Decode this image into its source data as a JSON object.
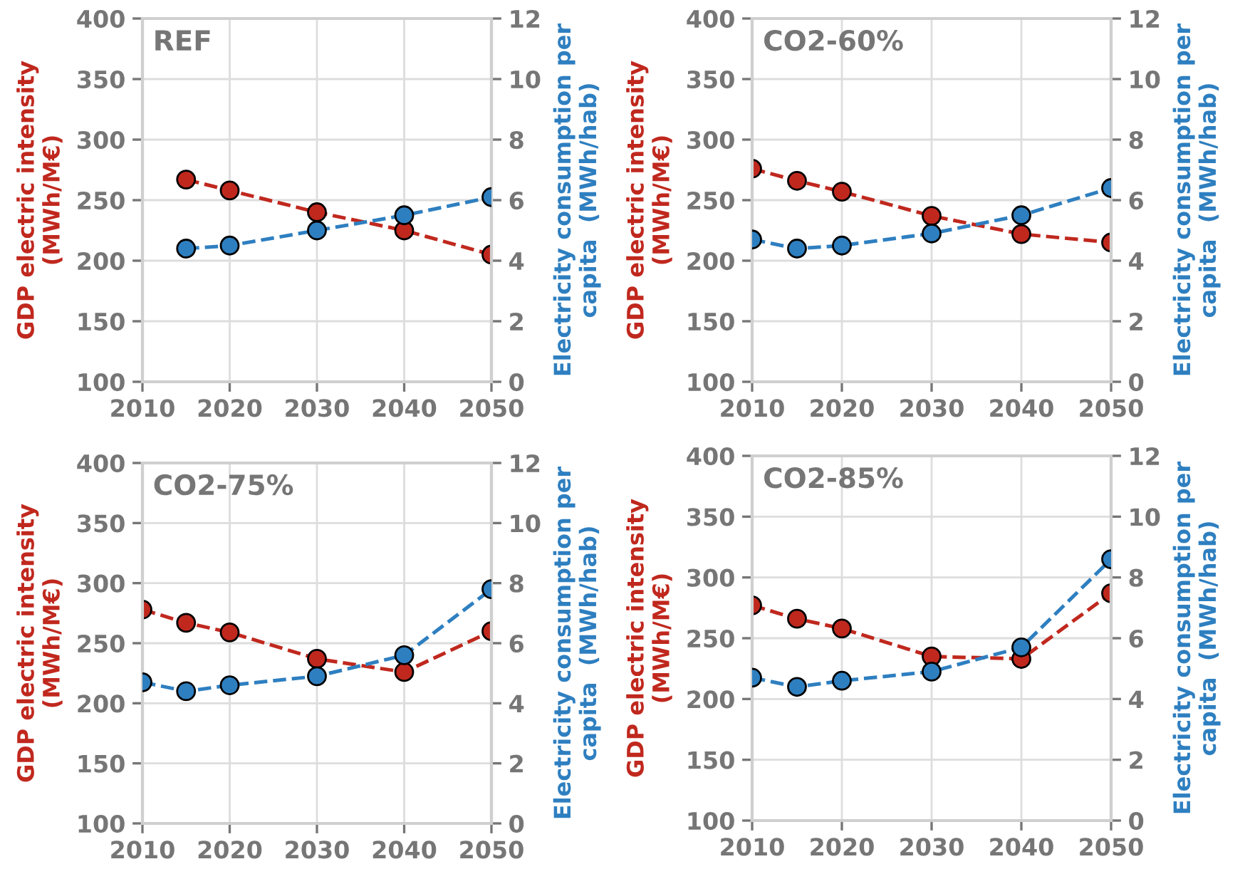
{
  "chart_data": [
    {
      "type": "line",
      "title": "REF",
      "x": [
        2015,
        2020,
        2030,
        2040,
        2050
      ],
      "xlim": [
        2010,
        2050
      ],
      "xticks": [
        2010,
        2020,
        2030,
        2040,
        2050
      ],
      "ylim": [
        100,
        400
      ],
      "yticks": [
        100,
        150,
        200,
        250,
        300,
        350,
        400
      ],
      "y2lim": [
        0,
        12
      ],
      "y2ticks": [
        0,
        2,
        4,
        6,
        8,
        10,
        12
      ],
      "ylabel": "GDP electric intensity\n(MWh/M€)",
      "y2label": "Electricity consumption per\ncapita  (MWh/hab)",
      "grid": true,
      "marker": "circle",
      "line_style": "dashed",
      "series": [
        {
          "color": "#c0281e",
          "values": [
            267,
            258,
            240,
            225,
            205
          ]
        },
        {
          "color": "#2e7fc0",
          "axis": "y2",
          "values": [
            4.4,
            4.5,
            5.0,
            5.5,
            6.1
          ]
        }
      ]
    },
    {
      "type": "line",
      "title": "CO2-60%",
      "x": [
        2010,
        2015,
        2020,
        2030,
        2040,
        2050
      ],
      "xlim": [
        2010,
        2050
      ],
      "xticks": [
        2010,
        2020,
        2030,
        2040,
        2050
      ],
      "ylim": [
        100,
        400
      ],
      "yticks": [
        100,
        150,
        200,
        250,
        300,
        350,
        400
      ],
      "y2lim": [
        0,
        12
      ],
      "y2ticks": [
        0,
        2,
        4,
        6,
        8,
        10,
        12
      ],
      "ylabel": "GDP electric intensity\n(MWh/M€)",
      "y2label": "Electricity consumption per\ncapita  (MWh/hab)",
      "grid": true,
      "marker": "circle",
      "line_style": "dashed",
      "series": [
        {
          "color": "#c0281e",
          "values": [
            276,
            266,
            257,
            237,
            222,
            215
          ]
        },
        {
          "color": "#2e7fc0",
          "axis": "y2",
          "values": [
            4.7,
            4.4,
            4.5,
            4.9,
            5.5,
            6.4
          ]
        }
      ]
    },
    {
      "type": "line",
      "title": "CO2-75%",
      "x": [
        2010,
        2015,
        2020,
        2030,
        2040,
        2050
      ],
      "xlim": [
        2010,
        2050
      ],
      "xticks": [
        2010,
        2020,
        2030,
        2040,
        2050
      ],
      "ylim": [
        100,
        400
      ],
      "yticks": [
        100,
        150,
        200,
        250,
        300,
        350,
        400
      ],
      "y2lim": [
        0,
        12
      ],
      "y2ticks": [
        0,
        2,
        4,
        6,
        8,
        10,
        12
      ],
      "ylabel": "GDP electric intensity\n(MWh/M€)",
      "y2label": "Electricity consumption per\ncapita  (MWh/hab)",
      "grid": true,
      "marker": "circle",
      "line_style": "dashed",
      "series": [
        {
          "color": "#c0281e",
          "values": [
            278,
            267,
            259,
            237,
            226,
            260
          ]
        },
        {
          "color": "#2e7fc0",
          "axis": "y2",
          "values": [
            4.7,
            4.4,
            4.6,
            4.9,
            5.6,
            7.8
          ]
        }
      ]
    },
    {
      "type": "line",
      "title": "CO2-85%",
      "x": [
        2010,
        2015,
        2020,
        2030,
        2040,
        2050
      ],
      "xlim": [
        2010,
        2050
      ],
      "xticks": [
        2010,
        2020,
        2030,
        2040,
        2050
      ],
      "ylim": [
        100,
        400
      ],
      "yticks": [
        100,
        150,
        200,
        250,
        300,
        350,
        400
      ],
      "y2lim": [
        0,
        12
      ],
      "y2ticks": [
        0,
        2,
        4,
        6,
        8,
        10,
        12
      ],
      "ylabel": "GDP electric intensity\n(MWh/M€)",
      "y2label": "Electricity consumption per\ncapita  (MWh/hab)",
      "grid": true,
      "marker": "circle",
      "line_style": "dashed",
      "series": [
        {
          "color": "#c0281e",
          "values": [
            277,
            266,
            258,
            235,
            233,
            287
          ]
        },
        {
          "color": "#2e7fc0",
          "axis": "y2",
          "values": [
            4.7,
            4.4,
            4.6,
            4.9,
            5.7,
            8.6
          ]
        }
      ]
    }
  ]
}
